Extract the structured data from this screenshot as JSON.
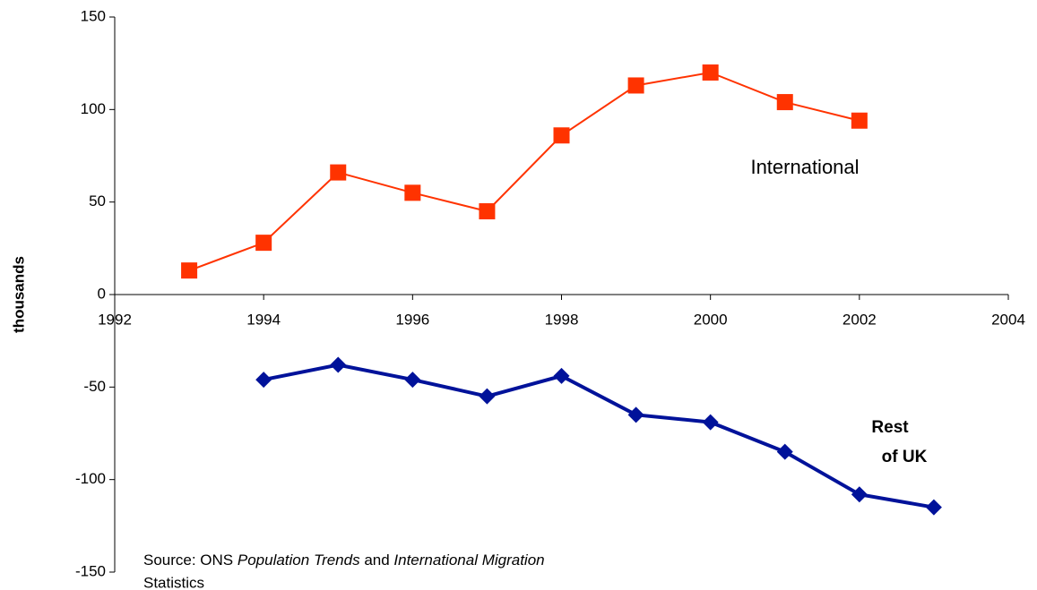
{
  "chart_data": {
    "type": "line",
    "y_label": "thousands",
    "xlim": [
      1992,
      2004
    ],
    "xticks": [
      1992,
      1994,
      1996,
      1998,
      2000,
      2002,
      2004
    ],
    "ylim": [
      -150,
      150
    ],
    "yticks": [
      -150,
      -100,
      -50,
      0,
      50,
      100,
      150
    ],
    "series": [
      {
        "name": "International",
        "color": "#ff3300",
        "marker": "square",
        "x": [
          1993,
          1994,
          1995,
          1996,
          1997,
          1998,
          1999,
          2000,
          2001,
          2002
        ],
        "values": [
          13,
          28,
          66,
          55,
          45,
          86,
          113,
          120,
          104,
          94
        ]
      },
      {
        "name": "Rest of UK",
        "color": "#00129a",
        "marker": "diamond",
        "x": [
          1994,
          1995,
          1996,
          1997,
          1998,
          1999,
          2000,
          2001,
          2002,
          2003
        ],
        "values": [
          -46,
          -38,
          -46,
          -55,
          -44,
          -65,
          -69,
          -85,
          -108,
          -115
        ]
      }
    ],
    "annotations": [
      {
        "lines": [
          "International"
        ]
      },
      {
        "lines": [
          "Rest",
          "of UK"
        ]
      }
    ],
    "source": [
      "Source: ONS ",
      "Population Trends",
      " and ",
      "International Migration",
      "Statistics"
    ]
  }
}
